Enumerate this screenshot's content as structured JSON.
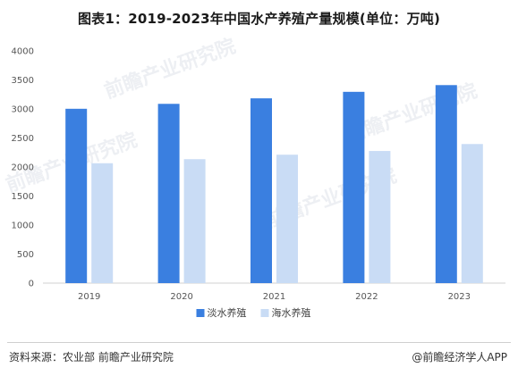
{
  "chart_data": {
    "type": "bar",
    "title": "图表1：2019-2023年中国水产养殖产量规模(单位：万吨)",
    "categories": [
      "2019",
      "2020",
      "2021",
      "2022",
      "2023"
    ],
    "series": [
      {
        "name": "淡水养殖",
        "values": [
          3003,
          3088,
          3183,
          3295,
          3411
        ],
        "color": "#3a7fe0"
      },
      {
        "name": "海水养殖",
        "values": [
          2065,
          2135,
          2212,
          2276,
          2396
        ],
        "color": "#c9dcf5"
      }
    ],
    "xlabel": "",
    "ylabel": "",
    "ylim": [
      0,
      4000
    ],
    "yticks": [
      0,
      500,
      1000,
      1500,
      2000,
      2500,
      3000,
      3500,
      4000
    ],
    "grid": false,
    "legend_position": "bottom"
  },
  "footer": {
    "source": "资料来源：农业部 前瞻产业研究院",
    "brand": "@前瞻经济学人APP"
  },
  "watermark": {
    "text": "前瞻产业研究院"
  }
}
